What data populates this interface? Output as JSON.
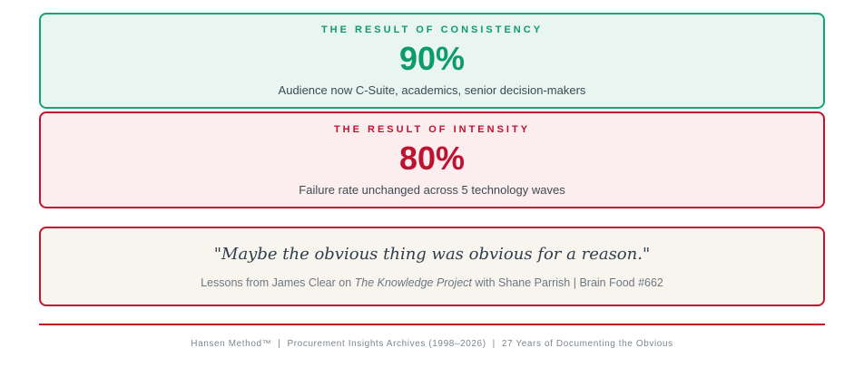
{
  "colors": {
    "green_text": "#0d9b6e",
    "green_border": "#14a377",
    "green_bg": "#e9f5f0",
    "red_text": "#be1231",
    "red_border": "#c51230",
    "red_bg": "#fcedee",
    "cream_bg": "#f8f5ee",
    "subtitle_slate": "#3d4a54",
    "quote_slate": "#2f3e4d",
    "attribution_gray": "#6e7781",
    "footer_gray": "#7d858f",
    "divider_red": "#cc1122"
  },
  "cards": [
    {
      "label": "THE RESULT OF CONSISTENCY",
      "value": "90%",
      "subtitle": "Audience now C-Suite, academics, senior decision-makers"
    },
    {
      "label": "THE RESULT OF INTENSITY",
      "value": "80%",
      "subtitle": "Failure rate unchanged across 5 technology waves"
    }
  ],
  "quote": {
    "text": "\"Maybe the obvious thing was obvious for a reason.\"",
    "attribution_prefix": "Lessons from James Clear on ",
    "attribution_italic": "The Knowledge Project",
    "attribution_suffix": " with Shane Parrish | Brain Food #662"
  },
  "footer": {
    "separator": "|",
    "segments": [
      "Hansen Method™",
      "Procurement Insights Archives (1998–2026)",
      "27 Years of Documenting the Obvious"
    ]
  }
}
